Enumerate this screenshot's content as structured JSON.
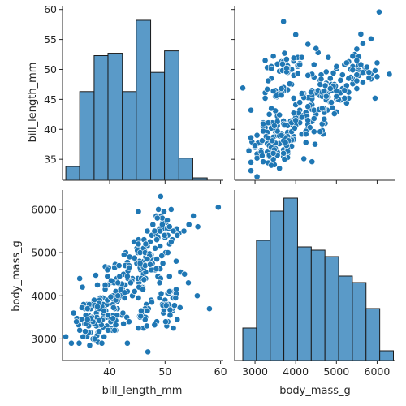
{
  "chart_data": {
    "type": "scatter",
    "kind": "pairplot",
    "variables": [
      "bill_length_mm",
      "body_mass_g"
    ],
    "colors": {
      "bar_fill": "#5a9ac8",
      "bar_edge": "#1a1a1a",
      "point": "#1f77b4"
    },
    "axis_labels": {
      "bill_length_mm": "bill_length_mm",
      "body_mass_g": "body_mass_g"
    },
    "ranges": {
      "bill_length_mm": [
        31.5,
        60.5
      ],
      "body_mass_g": [
        2500,
        6450
      ]
    },
    "ticks": {
      "bill_length_mm_y": [
        35,
        40,
        45,
        50,
        55,
        60
      ],
      "bill_length_mm_x": [
        40,
        50,
        60
      ],
      "body_mass_g": [
        3000,
        4000,
        5000,
        6000
      ]
    },
    "histograms": {
      "bill_length_mm": {
        "bins": [
          [
            32.1,
            34.6
          ],
          [
            34.6,
            37.2
          ],
          [
            37.2,
            39.7
          ],
          [
            39.7,
            42.3
          ],
          [
            42.3,
            44.8
          ],
          [
            44.8,
            47.4
          ],
          [
            47.4,
            49.9
          ],
          [
            49.9,
            52.5
          ],
          [
            52.5,
            55.0
          ],
          [
            55.0,
            57.6
          ],
          [
            57.6,
            60.1
          ]
        ],
        "heights": [
          33.8,
          46.3,
          52.3,
          52.7,
          46.3,
          58.2,
          49.5,
          53.1,
          35.2,
          31.9,
          31.5
        ]
      },
      "body_mass_g": {
        "bins": [
          [
            2700,
            3036
          ],
          [
            3036,
            3373
          ],
          [
            3373,
            3709
          ],
          [
            3709,
            4045
          ],
          [
            4045,
            4382
          ],
          [
            4382,
            4718
          ],
          [
            4718,
            5055
          ],
          [
            5055,
            5391
          ],
          [
            5391,
            5727
          ],
          [
            5727,
            6064
          ],
          [
            6064,
            6400
          ]
        ],
        "counts": [
          10,
          37,
          46,
          50,
          35,
          34,
          32,
          26,
          24,
          16,
          3
        ]
      }
    },
    "scatter": {
      "bill_length_mm": [
        39.1,
        39.5,
        40.3,
        36.7,
        39.3,
        38.9,
        39.2,
        34.1,
        42.0,
        37.8,
        37.8,
        41.1,
        38.6,
        34.6,
        36.6,
        38.7,
        42.5,
        34.4,
        46.0,
        37.8,
        37.7,
        35.9,
        38.2,
        38.8,
        35.3,
        40.6,
        40.5,
        37.9,
        40.5,
        39.5,
        37.2,
        39.5,
        40.9,
        36.4,
        39.2,
        38.8,
        42.2,
        37.6,
        39.8,
        36.5,
        40.8,
        36.0,
        44.1,
        37.0,
        39.6,
        41.1,
        37.5,
        36.0,
        42.3,
        39.6,
        40.1,
        35.0,
        42.0,
        34.5,
        41.4,
        39.0,
        40.6,
        36.5,
        37.6,
        35.7,
        41.3,
        37.6,
        41.1,
        36.4,
        41.6,
        35.5,
        41.1,
        35.9,
        41.8,
        33.5,
        39.7,
        39.6,
        45.8,
        35.5,
        42.8,
        40.9,
        37.2,
        36.2,
        42.1,
        34.6,
        42.9,
        36.7,
        35.1,
        37.3,
        41.3,
        36.3,
        36.9,
        38.3,
        38.9,
        35.7,
        41.1,
        34.0,
        39.6,
        36.2,
        40.8,
        38.1,
        40.3,
        33.1,
        43.2,
        35.0,
        41.0,
        37.7,
        37.8,
        37.9,
        39.7,
        38.6,
        38.2,
        38.1,
        43.2,
        38.1,
        45.6,
        39.7,
        42.2,
        39.6,
        42.7,
        38.6,
        37.3,
        35.7,
        41.1,
        36.2,
        37.7,
        40.2,
        41.4,
        35.2,
        40.6,
        38.8,
        41.5,
        39.0,
        44.1,
        38.5,
        43.1,
        36.8,
        37.5,
        38.1,
        41.1,
        35.6,
        40.2,
        37.0,
        39.7,
        40.2,
        40.6,
        32.1,
        40.7,
        37.3,
        39.0,
        39.2,
        36.6,
        36.0,
        37.8,
        36.0,
        41.5,
        46.1,
        50.0,
        48.7,
        50.0,
        47.6,
        46.5,
        45.4,
        46.7,
        43.3,
        46.8,
        40.9,
        49.0,
        45.5,
        48.4,
        45.8,
        49.3,
        42.0,
        49.2,
        46.2,
        48.7,
        50.2,
        45.1,
        46.5,
        46.3,
        42.9,
        46.1,
        44.5,
        47.8,
        48.2,
        50.0,
        47.3,
        42.8,
        45.1,
        59.6,
        49.1,
        48.4,
        42.6,
        44.4,
        44.0,
        48.7,
        42.7,
        49.6,
        45.3,
        49.6,
        50.5,
        43.6,
        45.5,
        50.5,
        44.9,
        45.2,
        46.6,
        48.5,
        45.1,
        50.1,
        46.5,
        45.0,
        43.8,
        45.5,
        43.2,
        50.4,
        45.3,
        46.2,
        45.7,
        54.3,
        45.8,
        49.8,
        46.2,
        49.5,
        43.5,
        50.7,
        47.7,
        46.4,
        48.2,
        46.5,
        46.4,
        48.6,
        47.5,
        51.1,
        45.2,
        45.2,
        49.1,
        52.5,
        47.4,
        50.0,
        44.9,
        50.8,
        43.4,
        51.3,
        47.5,
        52.1,
        47.5,
        52.2,
        45.5,
        49.5,
        44.5,
        50.8,
        49.4,
        46.9,
        48.4,
        51.1,
        48.5,
        55.9,
        47.2,
        49.1,
        47.3,
        46.8,
        41.7,
        53.4,
        43.3,
        48.1,
        50.5,
        49.8,
        43.5,
        51.5,
        46.2,
        55.1,
        44.5,
        48.8,
        47.2,
        46.8,
        50.4,
        45.2,
        49.9,
        46.5,
        50.0,
        51.3,
        45.4,
        52.7,
        45.2,
        46.1,
        51.3,
        46.0,
        51.3,
        46.6,
        51.7,
        47.0,
        52.0,
        45.9,
        50.5,
        50.3,
        58.0,
        46.4,
        49.2,
        42.4,
        48.5,
        43.2,
        50.6,
        46.7,
        52.0,
        50.5,
        49.5,
        46.4,
        52.8,
        40.9,
        54.2,
        42.5,
        51.0,
        49.7,
        47.5,
        47.6,
        52.0,
        46.9,
        53.5,
        49.0,
        46.2,
        50.9,
        45.5,
        50.9,
        50.8,
        50.1,
        49.0,
        51.5,
        49.8,
        48.1,
        51.4,
        45.7,
        50.7,
        42.5,
        52.2,
        45.2,
        49.3,
        50.2,
        45.6,
        51.9,
        46.8,
        45.7,
        55.8,
        43.5,
        49.6,
        50.8,
        50.2
      ],
      "body_mass_g": [
        3750,
        3800,
        3250,
        3450,
        3650,
        3625,
        4675,
        3475,
        4250,
        3300,
        3700,
        3200,
        3800,
        4400,
        3700,
        3450,
        4500,
        3325,
        4200,
        3400,
        3600,
        3800,
        3950,
        3800,
        3800,
        3550,
        3200,
        3150,
        3950,
        3250,
        3900,
        3300,
        3900,
        3325,
        4150,
        3950,
        3550,
        3300,
        4650,
        3150,
        3900,
        3100,
        4400,
        3000,
        4600,
        3425,
        2975,
        3450,
        4150,
        3500,
        4300,
        3450,
        4050,
        2900,
        3700,
        3550,
        3800,
        2850,
        3750,
        3150,
        4400,
        3600,
        4050,
        2850,
        3950,
        3350,
        4100,
        3050,
        4450,
        3600,
        3900,
        3550,
        4150,
        3700,
        4250,
        3700,
        3900,
        3550,
        4000,
        3200,
        4700,
        3800,
        4200,
        3350,
        3550,
        3800,
        3500,
        3950,
        3600,
        3550,
        4300,
        3400,
        4450,
        3300,
        4300,
        3700,
        4350,
        2900,
        4100,
        3725,
        4725,
        3075,
        4250,
        2925,
        3550,
        3750,
        3900,
        3175,
        4775,
        3825,
        4600,
        3200,
        4275,
        3900,
        4075,
        2900,
        3775,
        3350,
        3325,
        3150,
        3500,
        3450,
        3875,
        3050,
        4000,
        3275,
        4300,
        3050,
        4000,
        3325,
        3500,
        3500,
        4475,
        3425,
        3900,
        3175,
        3975,
        3400,
        4250,
        3400,
        3475,
        3050,
        3725,
        3000,
        3650,
        4250,
        3475,
        3450,
        3750,
        3700,
        4000,
        4500,
        5700,
        4450,
        5700,
        5400,
        4550,
        4800,
        5200,
        4400,
        5150,
        4650,
        5550,
        4650,
        5850,
        4200,
        5850,
        4150,
        6300,
        4800,
        5350,
        5700,
        5000,
        4400,
        5050,
        5000,
        5100,
        4100,
        5650,
        4600,
        5550,
        5250,
        4700,
        5050,
        6050,
        5150,
        5400,
        4950,
        5250,
        4350,
        5350,
        3950,
        5700,
        4300,
        4750,
        5550,
        4900,
        4200,
        5400,
        5100,
        5300,
        4850,
        5300,
        4400,
        5000,
        4900,
        5050,
        4300,
        5000,
        4450,
        5550,
        4200,
        5300,
        4400,
        5650,
        4700,
        5700,
        4650,
        5800,
        4700,
        5550,
        4750,
        5000,
        5100,
        5200,
        4700,
        5800,
        4600,
        6000,
        4750,
        5950,
        4625,
        5450,
        4725,
        5350,
        4750,
        5600,
        4600,
        5300,
        4875,
        5550,
        4950,
        5400,
        4750,
        5650,
        4850,
        5200,
        4925,
        4875,
        4625,
        5250,
        4850,
        5600,
        4975,
        5500,
        4725,
        5500,
        4700,
        5500,
        4575,
        5500,
        5000,
        5950,
        4650,
        5500,
        4375,
        5850,
        4875,
        6000,
        4925,
        4850,
        5750,
        5200,
        5400,
        3500,
        3900,
        3650,
        3525,
        3725,
        3950,
        3250,
        3750,
        4150,
        3700,
        3800,
        3775,
        3700,
        4050,
        3575,
        4050,
        3300,
        3700,
        3450,
        4400,
        3600,
        3400,
        2900,
        3800,
        3300,
        4150,
        3400,
        3800,
        3700,
        4550,
        3200,
        4300,
        3350,
        4100,
        3600,
        3900,
        3850,
        4800,
        2700,
        4500,
        3950,
        3650,
        3550,
        3500,
        3675,
        4450,
        3400,
        4300,
        3250,
        3675,
        3325,
        3950,
        3600,
        4050,
        3350,
        3450,
        3250,
        4050,
        3800,
        3525,
        3950,
        3650,
        3650,
        4000,
        3400,
        3775,
        4100,
        3775
      ]
    }
  }
}
